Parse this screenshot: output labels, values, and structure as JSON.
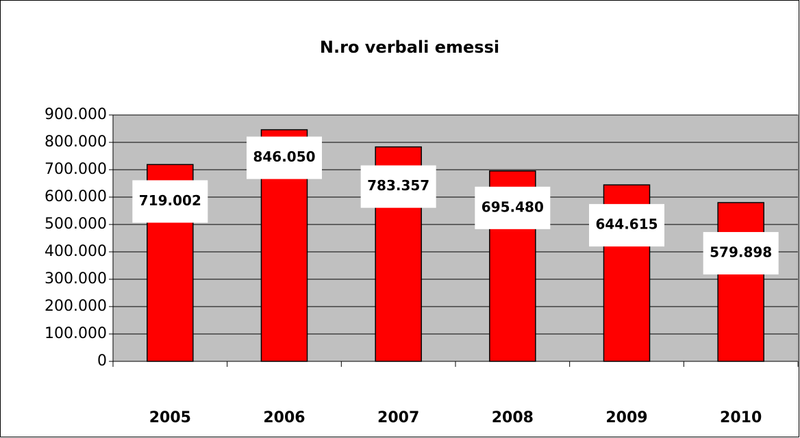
{
  "chart_data": {
    "type": "bar",
    "title": "N.ro verbali emessi",
    "categories": [
      "2005",
      "2006",
      "2007",
      "2008",
      "2009",
      "2010"
    ],
    "values": [
      719002,
      846050,
      783357,
      695480,
      644615,
      579898
    ],
    "value_labels": [
      "719.002",
      "846.050",
      "783.357",
      "695.480",
      "644.615",
      "579.898"
    ],
    "color": "#ff0000",
    "ylim": [
      0,
      900000
    ],
    "yticks": [
      0,
      {
        "value": 100000,
        "label": "100.000"
      },
      {
        "value": 200000,
        "label": "200.000"
      },
      {
        "value": 300000,
        "label": "300.000"
      },
      {
        "value": 400000,
        "label": "400.000"
      },
      {
        "value": 500000,
        "label": "500.000"
      },
      {
        "value": 600000,
        "label": "600.000"
      },
      {
        "value": 700000,
        "label": "700.000"
      },
      {
        "value": 800000,
        "label": "800.000"
      },
      {
        "value": 900000,
        "label": "900.000"
      }
    ],
    "grid": true
  }
}
